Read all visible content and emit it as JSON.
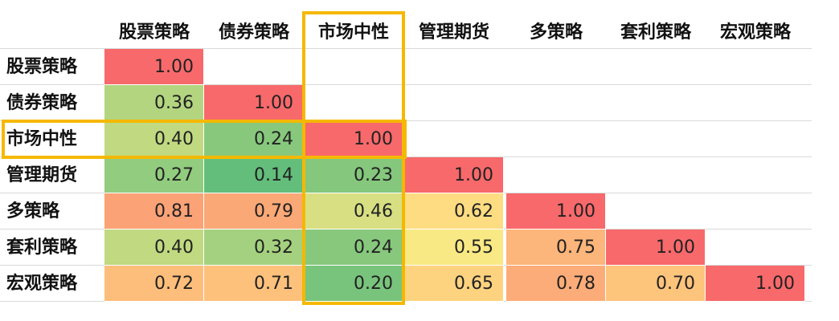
{
  "chart_data": {
    "type": "heatmap",
    "columns": [
      "股票策略",
      "债券策略",
      "市场中性",
      "管理期货",
      "多策略",
      "套利策略",
      "宏观策略"
    ],
    "rows": [
      "股票策略",
      "债券策略",
      "市场中性",
      "管理期货",
      "多策略",
      "套利策略",
      "宏观策略"
    ],
    "values": [
      [
        1.0
      ],
      [
        0.36,
        1.0
      ],
      [
        0.4,
        0.24,
        1.0
      ],
      [
        0.27,
        0.14,
        0.23,
        1.0
      ],
      [
        0.81,
        0.79,
        0.46,
        0.62,
        1.0
      ],
      [
        0.4,
        0.32,
        0.24,
        0.55,
        0.75,
        1.0
      ],
      [
        0.72,
        0.71,
        0.2,
        0.65,
        0.78,
        0.7,
        1.0
      ]
    ],
    "value_format": "0.00",
    "highlighted": {
      "column": "市场中性",
      "row": "市场中性"
    },
    "highlight_color": "#f5b800"
  }
}
